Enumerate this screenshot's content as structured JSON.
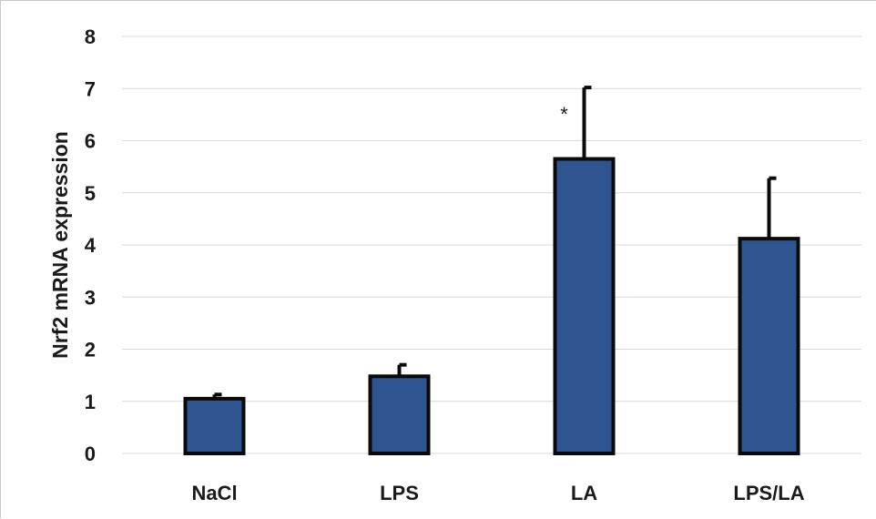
{
  "chart_data": {
    "type": "bar",
    "title": "",
    "xlabel": "",
    "ylabel": "Nrf2 mRNA expression",
    "categories": [
      "NaCl",
      "LPS",
      "LA",
      "LPS/LA"
    ],
    "values": [
      1.05,
      1.48,
      5.65,
      4.12
    ],
    "errors": [
      0.08,
      0.22,
      1.37,
      1.16
    ],
    "annotations": [
      "",
      "",
      "*",
      ""
    ],
    "ylim": [
      0,
      8
    ],
    "yticks": [
      "0",
      "1",
      "2",
      "3",
      "4",
      "5",
      "6",
      "7",
      "8"
    ],
    "grid": true,
    "legend": "none",
    "colors": {
      "bar_fill": "#2f5590",
      "bar_edge": "#0a0a0a",
      "grid": "#d9d9d9",
      "text": "#1a1a1a"
    }
  }
}
